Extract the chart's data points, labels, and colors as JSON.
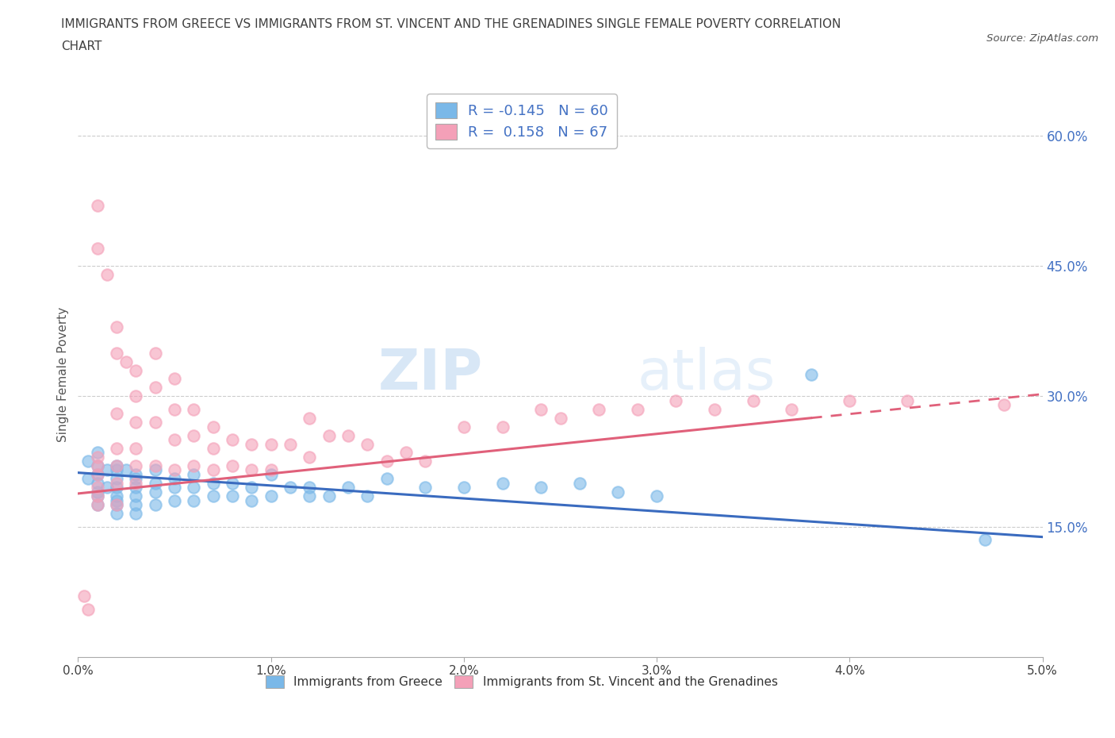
{
  "title_line1": "IMMIGRANTS FROM GREECE VS IMMIGRANTS FROM ST. VINCENT AND THE GRENADINES SINGLE FEMALE POVERTY CORRELATION",
  "title_line2": "CHART",
  "source_text": "Source: ZipAtlas.com",
  "ylabel": "Single Female Poverty",
  "x_min": 0.0,
  "x_max": 0.05,
  "y_min": 0.0,
  "y_max": 0.65,
  "x_ticks": [
    0.0,
    0.01,
    0.02,
    0.03,
    0.04,
    0.05
  ],
  "x_tick_labels": [
    "0.0%",
    "1.0%",
    "2.0%",
    "3.0%",
    "4.0%",
    "5.0%"
  ],
  "y_ticks": [
    0.15,
    0.3,
    0.45,
    0.6
  ],
  "y_tick_labels": [
    "15.0%",
    "30.0%",
    "45.0%",
    "60.0%"
  ],
  "watermark_zip": "ZIP",
  "watermark_atlas": "atlas",
  "legend_label1": "R = -0.145   N = 60",
  "legend_label2": "R =  0.158   N = 67",
  "color_blue": "#7ab8e8",
  "color_pink": "#f4a0b8",
  "color_blue_line": "#3a6bbf",
  "color_pink_line": "#e0607a",
  "color_text_blue": "#4472c4",
  "color_grid": "#cccccc",
  "color_title": "#404040",
  "scatter_blue_x": [
    0.0005,
    0.0005,
    0.001,
    0.001,
    0.001,
    0.001,
    0.001,
    0.001,
    0.001,
    0.0015,
    0.0015,
    0.002,
    0.002,
    0.002,
    0.002,
    0.002,
    0.002,
    0.002,
    0.002,
    0.0025,
    0.003,
    0.003,
    0.003,
    0.003,
    0.003,
    0.003,
    0.004,
    0.004,
    0.004,
    0.004,
    0.005,
    0.005,
    0.005,
    0.006,
    0.006,
    0.006,
    0.007,
    0.007,
    0.008,
    0.008,
    0.009,
    0.009,
    0.01,
    0.01,
    0.011,
    0.012,
    0.012,
    0.013,
    0.014,
    0.015,
    0.016,
    0.018,
    0.02,
    0.022,
    0.024,
    0.026,
    0.028,
    0.03,
    0.038,
    0.047
  ],
  "scatter_blue_y": [
    0.225,
    0.205,
    0.235,
    0.22,
    0.21,
    0.2,
    0.19,
    0.185,
    0.175,
    0.215,
    0.195,
    0.22,
    0.215,
    0.205,
    0.195,
    0.185,
    0.18,
    0.175,
    0.165,
    0.215,
    0.21,
    0.205,
    0.195,
    0.185,
    0.175,
    0.165,
    0.215,
    0.2,
    0.19,
    0.175,
    0.205,
    0.195,
    0.18,
    0.21,
    0.195,
    0.18,
    0.2,
    0.185,
    0.2,
    0.185,
    0.195,
    0.18,
    0.21,
    0.185,
    0.195,
    0.195,
    0.185,
    0.185,
    0.195,
    0.185,
    0.205,
    0.195,
    0.195,
    0.2,
    0.195,
    0.2,
    0.19,
    0.185,
    0.325,
    0.135
  ],
  "scatter_pink_x": [
    0.0003,
    0.0005,
    0.001,
    0.001,
    0.001,
    0.001,
    0.001,
    0.001,
    0.001,
    0.001,
    0.0015,
    0.002,
    0.002,
    0.002,
    0.002,
    0.002,
    0.002,
    0.002,
    0.0025,
    0.003,
    0.003,
    0.003,
    0.003,
    0.003,
    0.003,
    0.004,
    0.004,
    0.004,
    0.004,
    0.005,
    0.005,
    0.005,
    0.005,
    0.006,
    0.006,
    0.006,
    0.007,
    0.007,
    0.007,
    0.008,
    0.008,
    0.009,
    0.009,
    0.01,
    0.01,
    0.011,
    0.012,
    0.012,
    0.013,
    0.014,
    0.015,
    0.016,
    0.017,
    0.018,
    0.02,
    0.022,
    0.024,
    0.025,
    0.027,
    0.029,
    0.031,
    0.033,
    0.035,
    0.037,
    0.04,
    0.043,
    0.048
  ],
  "scatter_pink_y": [
    0.07,
    0.055,
    0.52,
    0.47,
    0.23,
    0.22,
    0.21,
    0.195,
    0.185,
    0.175,
    0.44,
    0.38,
    0.35,
    0.28,
    0.24,
    0.22,
    0.2,
    0.175,
    0.34,
    0.33,
    0.3,
    0.27,
    0.24,
    0.22,
    0.2,
    0.35,
    0.31,
    0.27,
    0.22,
    0.32,
    0.285,
    0.25,
    0.215,
    0.285,
    0.255,
    0.22,
    0.265,
    0.24,
    0.215,
    0.25,
    0.22,
    0.245,
    0.215,
    0.245,
    0.215,
    0.245,
    0.275,
    0.23,
    0.255,
    0.255,
    0.245,
    0.225,
    0.235,
    0.225,
    0.265,
    0.265,
    0.285,
    0.275,
    0.285,
    0.285,
    0.295,
    0.285,
    0.295,
    0.285,
    0.295,
    0.295,
    0.29
  ]
}
